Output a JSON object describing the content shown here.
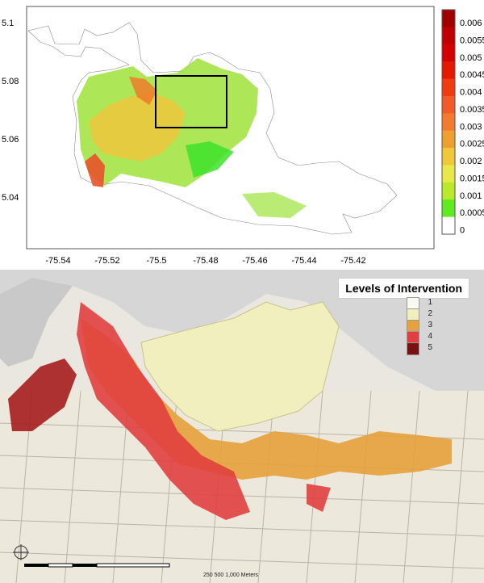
{
  "chart_data": {
    "type": "map",
    "x_ticks": [
      "-75.54",
      "-75.52",
      "-75.5",
      "-75.48",
      "-75.46",
      "-75.44",
      "-75.42"
    ],
    "y_ticks": [
      "5.1",
      "5.08",
      "5.06",
      "5.04"
    ],
    "colorbar_ticks": [
      "0.006",
      "0.0055",
      "0.005",
      "0.0045",
      "0.004",
      "0.0035",
      "0.003",
      "0.0025",
      "0.002",
      "0.0015",
      "0.001",
      "0.0005",
      "0"
    ],
    "colorbar_colors": [
      "#a00000",
      "#bf0000",
      "#d40000",
      "#e41a00",
      "#f03a10",
      "#f35a2a",
      "#f47a30",
      "#f0a030",
      "#f1c83a",
      "#e8e84a",
      "#b8ea2a",
      "#60ea22",
      "#ffffff"
    ]
  },
  "inset": {
    "title": "Levels of Intervention",
    "levels": [
      {
        "label": "1",
        "color": "#fbfbf3"
      },
      {
        "label": "2",
        "color": "#f2efbf"
      },
      {
        "label": "3",
        "color": "#e6a13a"
      },
      {
        "label": "4",
        "color": "#e13f3f"
      },
      {
        "label": "5",
        "color": "#7a1111"
      }
    ],
    "scale_labels": [
      "250",
      "500",
      "1,000",
      "Meters"
    ]
  }
}
